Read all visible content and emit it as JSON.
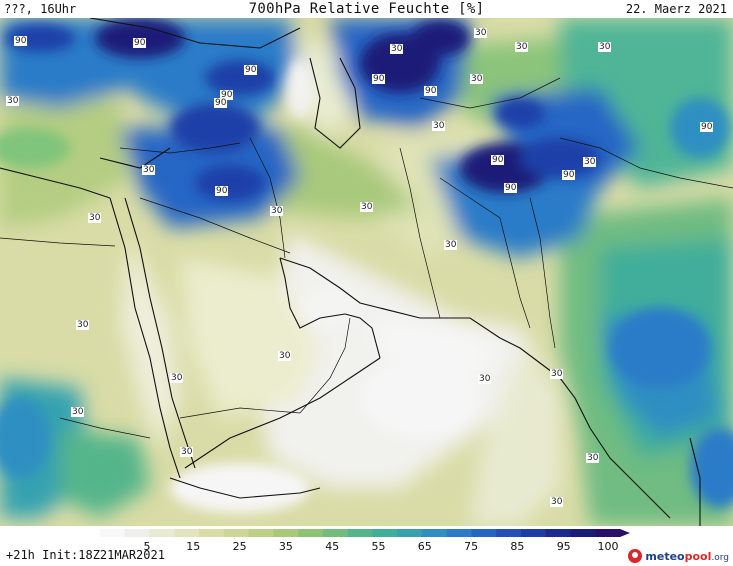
{
  "header": {
    "left": "???, 16Uhr",
    "title": "700hPa Relative Feuchte [%]",
    "right": "22. Maerz 2021"
  },
  "map": {
    "variable": "relative humidity 700hPa",
    "region": "Middle East / Arabian Peninsula / Pakistan / Western India",
    "contour_labels": [
      "90",
      "90",
      "90",
      "90",
      "90",
      "90",
      "90",
      "90",
      "90",
      "90",
      "90",
      "90",
      "30",
      "30",
      "30",
      "30",
      "30",
      "30",
      "30",
      "30",
      "30",
      "30",
      "30",
      "30",
      "30",
      "30",
      "30",
      "30",
      "30",
      "30",
      "30",
      "30",
      "30",
      "30"
    ],
    "colors": {
      "very_dry": "#f4f4f4",
      "dry": "#eef0dc",
      "mid_dry": "#d9dca6",
      "mid": "#b7cc7c",
      "moist_green": "#7fc57a",
      "teal": "#3fae9a",
      "blue": "#2b7bc8",
      "deep_blue": "#1c3fa8",
      "navy": "#1b1e78"
    }
  },
  "legend": {
    "ticks": [
      "5",
      "15",
      "25",
      "35",
      "45",
      "55",
      "65",
      "75",
      "85",
      "95",
      "100"
    ],
    "colors": [
      "#f8f8f8",
      "#eeeeec",
      "#e8ead4",
      "#e2e4be",
      "#dadca6",
      "#cdd694",
      "#bed088",
      "#a8c97a",
      "#8fc374",
      "#72bd7c",
      "#55b58a",
      "#3fae9a",
      "#36a2b0",
      "#2f8fc2",
      "#2b7bc8",
      "#2866c4",
      "#244fb8",
      "#1f3ca6",
      "#1b2c8e",
      "#1b1e78",
      "#2a0f6a"
    ]
  },
  "footer": {
    "left": "+21h Init:18Z21MAR2021",
    "logo_a": "meteo",
    "logo_b": "pool",
    "logo_c": ".org"
  }
}
